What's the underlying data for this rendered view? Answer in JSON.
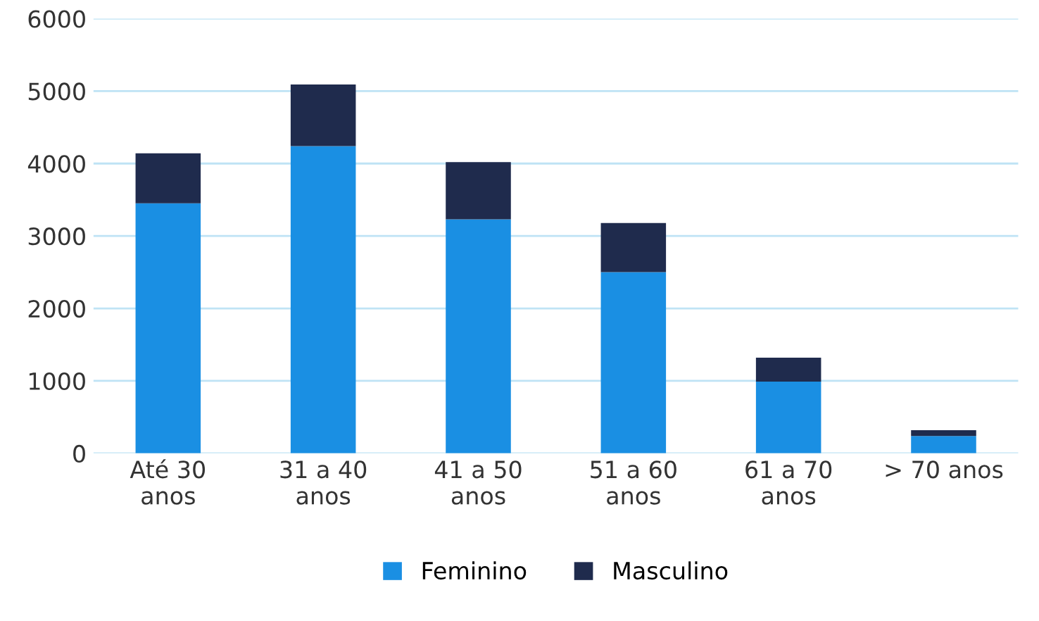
{
  "chart_data": {
    "type": "bar",
    "stacked": true,
    "categories": [
      "Até 30\nanos",
      "31 a 40\nanos",
      "41 a 50\nanos",
      "51 a 60\nanos",
      "61 a 70\nanos",
      "> 70 anos"
    ],
    "series": [
      {
        "name": "Feminino",
        "color": "#1a8fe3",
        "values": [
          3450,
          4240,
          3230,
          2500,
          990,
          240
        ]
      },
      {
        "name": "Masculino",
        "color": "#1f2b4d",
        "values": [
          690,
          850,
          790,
          680,
          330,
          80
        ]
      }
    ],
    "ylim": [
      0,
      6000
    ],
    "yticks": [
      0,
      1000,
      2000,
      3000,
      4000,
      5000,
      6000
    ],
    "grid": "y",
    "legend": "bottom"
  }
}
